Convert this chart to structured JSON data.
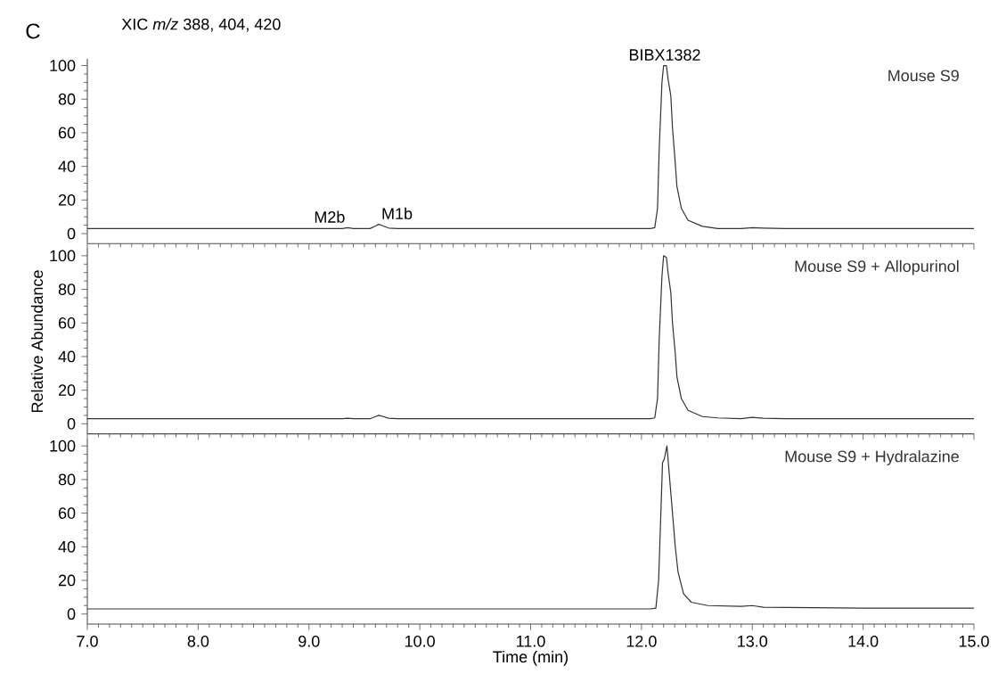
{
  "chart_data": [
    {
      "type": "line",
      "title": "XIC *m/z* 388, 404, 420",
      "annotations": [
        "C",
        {
          "text": "BIBX1382",
          "x": 12.21,
          "y": 100
        },
        {
          "text": "M2b",
          "x": 9.35,
          "y": 3.5
        },
        {
          "text": "M1b",
          "x": 9.63,
          "y": 5.5
        }
      ],
      "series": [
        {
          "name": "Mouse S9",
          "color": "#333333",
          "x": [
            7.0,
            9.0,
            9.3,
            9.35,
            9.4,
            9.55,
            9.6,
            9.63,
            9.67,
            9.72,
            9.8,
            11.5,
            12.08,
            12.12,
            12.145,
            12.16,
            12.185,
            12.2,
            12.225,
            12.24,
            12.265,
            12.28,
            12.305,
            12.32,
            12.36,
            12.42,
            12.55,
            12.69,
            12.9,
            13.0,
            13.1,
            13.3,
            14.0,
            15.0
          ],
          "values": [
            3,
            3,
            3,
            3.5,
            3,
            3,
            4.5,
            5.5,
            4.5,
            3.3,
            3,
            3,
            3,
            3.5,
            15,
            50,
            90,
            100,
            100,
            92,
            82,
            63,
            42,
            28,
            15,
            8,
            4.3,
            3,
            3,
            3.5,
            3.3,
            3,
            3,
            3
          ]
        }
      ],
      "xlim": [
        7.0,
        15.0
      ],
      "ylim": [
        -6,
        104
      ],
      "yticks": [
        0,
        20,
        40,
        60,
        80,
        100
      ],
      "xticks": [
        {
          "value": 7,
          "label": null
        },
        {
          "value": 8,
          "label": null
        },
        {
          "value": 9,
          "label": null
        },
        {
          "value": 10,
          "label": null
        },
        {
          "value": 11,
          "label": null
        },
        {
          "value": 12,
          "label": null
        },
        {
          "value": 13,
          "label": null
        },
        {
          "value": 14,
          "label": null
        },
        {
          "value": 15,
          "label": null
        }
      ],
      "tick_labels": "y"
    },
    {
      "type": "line",
      "ylabel": "Relative Abundance",
      "series": [
        {
          "name": "Mouse S9 + Allopurinol",
          "color": "#333333",
          "x": [
            7.0,
            9.0,
            9.3,
            9.35,
            9.4,
            9.55,
            9.6,
            9.63,
            9.67,
            9.72,
            9.8,
            11.5,
            12.08,
            12.12,
            12.145,
            12.16,
            12.185,
            12.2,
            12.225,
            12.24,
            12.265,
            12.28,
            12.305,
            12.32,
            12.36,
            12.42,
            12.55,
            12.69,
            12.9,
            13.0,
            13.1,
            13.3,
            14.0,
            15.0
          ],
          "values": [
            3,
            3,
            3,
            3.3,
            3,
            3,
            4.3,
            5,
            4.3,
            3.3,
            3,
            3,
            3,
            3.5,
            15,
            50,
            88,
            100,
            99,
            90,
            78,
            60,
            42,
            28,
            15,
            8,
            4.3,
            3.5,
            3,
            3.8,
            3.3,
            3,
            3,
            3
          ]
        }
      ],
      "xlim": [
        7.0,
        15.0
      ],
      "ylim": [
        -6,
        104
      ],
      "yticks": [
        0,
        20,
        40,
        60,
        80,
        100
      ],
      "xticks": [
        {
          "value": 7,
          "label": null
        },
        {
          "value": 8,
          "label": null
        },
        {
          "value": 9,
          "label": null
        },
        {
          "value": 10,
          "label": null
        },
        {
          "value": 11,
          "label": null
        },
        {
          "value": 12,
          "label": null
        },
        {
          "value": 13,
          "label": null
        },
        {
          "value": 14,
          "label": null
        },
        {
          "value": 15,
          "label": null
        }
      ],
      "tick_labels": "y"
    },
    {
      "type": "line",
      "xlabel": "Time (min)",
      "series": [
        {
          "name": "Mouse S9 + Hydralazine",
          "color": "#333333",
          "x": [
            7.0,
            11.5,
            12.08,
            12.13,
            12.155,
            12.17,
            12.19,
            12.205,
            12.23,
            12.255,
            12.28,
            12.305,
            12.33,
            12.38,
            12.45,
            12.6,
            12.9,
            13.0,
            13.1,
            14.0,
            15.0
          ],
          "values": [
            3,
            3,
            3,
            3.5,
            20,
            50,
            90,
            92,
            100,
            80,
            60,
            40,
            25,
            12,
            7,
            5,
            4.5,
            5,
            4,
            3.5,
            3.5
          ]
        }
      ],
      "xlim": [
        7.0,
        15.0
      ],
      "ylim": [
        -6,
        104
      ],
      "yticks": [
        0,
        20,
        40,
        60,
        80,
        100
      ],
      "xticks": [
        {
          "value": 7,
          "label": "7.0"
        },
        {
          "value": 8,
          "label": "8.0"
        },
        {
          "value": 9,
          "label": "9.0"
        },
        {
          "value": 10,
          "label": "10.0"
        },
        {
          "value": 11,
          "label": "11.0"
        },
        {
          "value": 12,
          "label": "12.0"
        },
        {
          "value": 13,
          "label": "13.0"
        },
        {
          "value": 14,
          "label": "14.0"
        },
        {
          "value": 15,
          "label": "15.0"
        }
      ]
    }
  ]
}
